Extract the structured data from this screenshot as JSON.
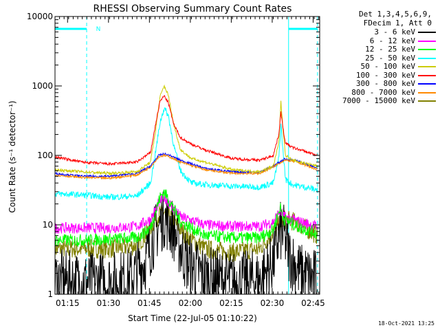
{
  "chart_data": {
    "type": "line",
    "title": "RHESSI Observing Summary Count Rates",
    "xlabel": "Start Time (22-Jul-05 01:10:22)",
    "ylabel": "Count Rate (s⁻¹ detector⁻¹)",
    "yscale": "log",
    "ylim": [
      1,
      10000
    ],
    "xlim_minutes": [
      0,
      97
    ],
    "x_ticks": [
      {
        "t": 4.6,
        "label": "01:15"
      },
      {
        "t": 19.6,
        "label": "01:30"
      },
      {
        "t": 34.6,
        "label": "01:45"
      },
      {
        "t": 49.6,
        "label": "02:00"
      },
      {
        "t": 64.6,
        "label": "02:15"
      },
      {
        "t": 79.6,
        "label": "02:30"
      },
      {
        "t": 94.6,
        "label": "02:45"
      }
    ],
    "y_ticks": [
      {
        "v": 1,
        "label": "1"
      },
      {
        "v": 10,
        "label": "10"
      },
      {
        "v": 100,
        "label": "100"
      },
      {
        "v": 1000,
        "label": "1000"
      },
      {
        "v": 10000,
        "label": "10000"
      }
    ],
    "annotations": [
      {
        "text": "N",
        "t": 13.5
      }
    ],
    "shaded_intervals": [
      {
        "name": "night",
        "start": 0.0,
        "end": 11.6
      },
      {
        "name": "night",
        "start": 85.6,
        "end": 96.2
      }
    ],
    "legend_header": [
      "Det 1,3,4,5,6,9,",
      "FDecim 1, Att 0"
    ],
    "series": [
      {
        "name": "3 - 6 keV",
        "color": "#000000",
        "x": [
          0,
          10,
          20,
          28,
          33,
          37,
          40,
          43,
          48,
          55,
          65,
          75,
          80,
          82.5,
          84,
          86,
          90,
          96.2
        ],
        "y": [
          1.6,
          1.5,
          1.5,
          1.7,
          3.0,
          8.0,
          13,
          9.0,
          3.0,
          1.8,
          1.5,
          1.6,
          3.0,
          8.0,
          7.0,
          3.5,
          2.0,
          1.6
        ]
      },
      {
        "name": "6 - 12 keV",
        "color": "#ff00ff",
        "x": [
          0,
          10,
          20,
          30,
          35,
          38.5,
          40,
          42,
          46,
          55,
          65,
          75,
          80,
          82.5,
          84,
          90,
          96.2
        ],
        "y": [
          9.0,
          9.0,
          9.0,
          9.5,
          12,
          22,
          25,
          20,
          13,
          10,
          9.5,
          9.5,
          11,
          16,
          13,
          11,
          9.5
        ]
      },
      {
        "name": "12 - 25 keV",
        "color": "#00ff00",
        "x": [
          0,
          10,
          20,
          30,
          35,
          38.5,
          40,
          42,
          46,
          55,
          65,
          75,
          80,
          82.5,
          84,
          90,
          96.2
        ],
        "y": [
          6.0,
          6.0,
          6.2,
          6.5,
          9.0,
          25,
          30,
          22,
          11,
          7.0,
          6.5,
          6.5,
          8.5,
          18,
          12,
          9.0,
          7.5
        ]
      },
      {
        "name": "25 - 50 keV",
        "color": "#00ffff",
        "x": [
          0,
          10,
          20,
          30,
          35,
          37,
          38.5,
          40,
          41.5,
          43.5,
          46,
          50,
          55,
          65,
          75,
          80,
          82,
          82.8,
          83.5,
          84.5,
          87,
          96.2
        ],
        "y": [
          28,
          27,
          25,
          26,
          40,
          120,
          300,
          480,
          380,
          140,
          60,
          40,
          38,
          36,
          35,
          40,
          90,
          280,
          120,
          45,
          38,
          32
        ]
      },
      {
        "name": "50 - 100 keV",
        "color": "#cccc00",
        "x": [
          0,
          10,
          20,
          30,
          35,
          37,
          38.5,
          40,
          41.5,
          43.5,
          46,
          50,
          55,
          65,
          75,
          80,
          82,
          82.8,
          83.5,
          84.5,
          87,
          96.2
        ],
        "y": [
          62,
          58,
          55,
          58,
          80,
          250,
          700,
          1000,
          750,
          280,
          120,
          90,
          80,
          62,
          58,
          70,
          150,
          600,
          250,
          100,
          85,
          70
        ]
      },
      {
        "name": "100 - 300 keV",
        "color": "#ff0000",
        "x": [
          0,
          10,
          20,
          30,
          35,
          37,
          38.5,
          40,
          41.5,
          43.5,
          46,
          50,
          55,
          65,
          75,
          80,
          82,
          82.8,
          83.5,
          84.5,
          87,
          96.2
        ],
        "y": [
          95,
          80,
          75,
          80,
          110,
          300,
          600,
          720,
          580,
          280,
          180,
          145,
          120,
          90,
          85,
          100,
          200,
          420,
          250,
          150,
          130,
          100
        ]
      },
      {
        "name": "300 - 800 keV",
        "color": "#0000ff",
        "x": [
          0,
          10,
          20,
          30,
          35,
          38,
          40,
          42,
          46,
          55,
          65,
          75,
          80,
          84,
          88,
          96.2
        ],
        "y": [
          55,
          50,
          50,
          55,
          70,
          100,
          105,
          100,
          85,
          65,
          58,
          57,
          70,
          88,
          85,
          65
        ]
      },
      {
        "name": "800 - 7000 keV",
        "color": "#ff8800",
        "x": [
          0,
          10,
          20,
          30,
          35,
          38,
          40,
          42,
          46,
          55,
          65,
          75,
          80,
          84,
          88,
          96.2
        ],
        "y": [
          52,
          48,
          47,
          52,
          68,
          95,
          100,
          95,
          80,
          62,
          55,
          55,
          68,
          85,
          82,
          62
        ]
      },
      {
        "name": "7000 - 15000 keV",
        "color": "#808000",
        "x": [
          0,
          10,
          20,
          30,
          35,
          38,
          40,
          43,
          48,
          55,
          65,
          75,
          80,
          84,
          88,
          96.2
        ],
        "y": [
          4.5,
          4.5,
          4.5,
          5.0,
          9.0,
          14,
          15,
          12,
          7.0,
          4.5,
          4.0,
          4.5,
          8.0,
          12,
          11,
          7.0
        ]
      }
    ]
  },
  "footer_date": "18-Oct-2021 13:25"
}
